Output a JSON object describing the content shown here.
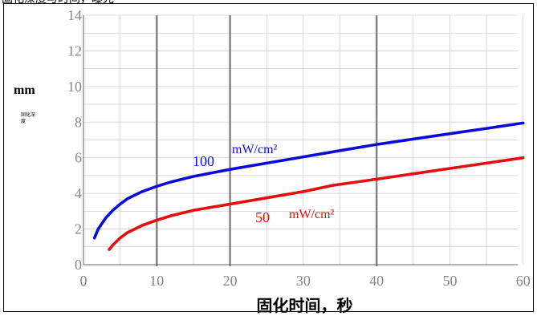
{
  "header_text": "固化深度与时间，曝光",
  "unit_label": "mm",
  "depth_label": "固化深度",
  "colors": {
    "series_100": "#0b0bd9",
    "series_50": "#e30e0e",
    "axis_label": "#888888",
    "grid_major": "#808080",
    "grid_minor": "#d0d0d0"
  },
  "chart_data": {
    "type": "line",
    "title": "",
    "xlabel": "固化时间，秒",
    "ylabel": "mm",
    "xlim": [
      0,
      62
    ],
    "ylim": [
      0,
      14
    ],
    "x_ticks": [
      0,
      10,
      20,
      30,
      40,
      50,
      60
    ],
    "y_ticks": [
      0,
      2,
      4,
      6,
      8,
      10,
      12,
      14
    ],
    "x_tick_labels": [
      "0",
      "10",
      "20",
      "30",
      "40",
      "50",
      "60"
    ],
    "y_tick_labels": [
      "0",
      "2",
      "4",
      "6",
      "8",
      "10",
      "12",
      "14"
    ],
    "major_gridlines_x": [
      10,
      20,
      40
    ],
    "grid": true,
    "series": [
      {
        "name": "100 mW/cm²",
        "value_label": "100",
        "unit_label": "mW/cm²",
        "color": "#0b0bd9",
        "points": [
          [
            1.5,
            1.5
          ],
          [
            2,
            2.0
          ],
          [
            3,
            2.6
          ],
          [
            4,
            3.05
          ],
          [
            5,
            3.4
          ],
          [
            6,
            3.7
          ],
          [
            8,
            4.1
          ],
          [
            10,
            4.4
          ],
          [
            12,
            4.65
          ],
          [
            15,
            4.95
          ],
          [
            20,
            5.35
          ],
          [
            25,
            5.7
          ],
          [
            30,
            6.05
          ],
          [
            35,
            6.4
          ],
          [
            40,
            6.75
          ],
          [
            45,
            7.05
          ],
          [
            50,
            7.35
          ],
          [
            55,
            7.65
          ],
          [
            60,
            7.95
          ]
        ]
      },
      {
        "name": "50 mW/cm²",
        "value_label": "50",
        "unit_label": "mW/cm²",
        "color": "#e30e0e",
        "points": [
          [
            3.5,
            0.85
          ],
          [
            4,
            1.1
          ],
          [
            5,
            1.5
          ],
          [
            6,
            1.8
          ],
          [
            8,
            2.2
          ],
          [
            10,
            2.5
          ],
          [
            12,
            2.75
          ],
          [
            15,
            3.05
          ],
          [
            20,
            3.4
          ],
          [
            25,
            3.75
          ],
          [
            30,
            4.1
          ],
          [
            34,
            4.45
          ],
          [
            40,
            4.8
          ],
          [
            45,
            5.1
          ],
          [
            50,
            5.4
          ],
          [
            55,
            5.7
          ],
          [
            60,
            6.0
          ]
        ]
      }
    ]
  }
}
